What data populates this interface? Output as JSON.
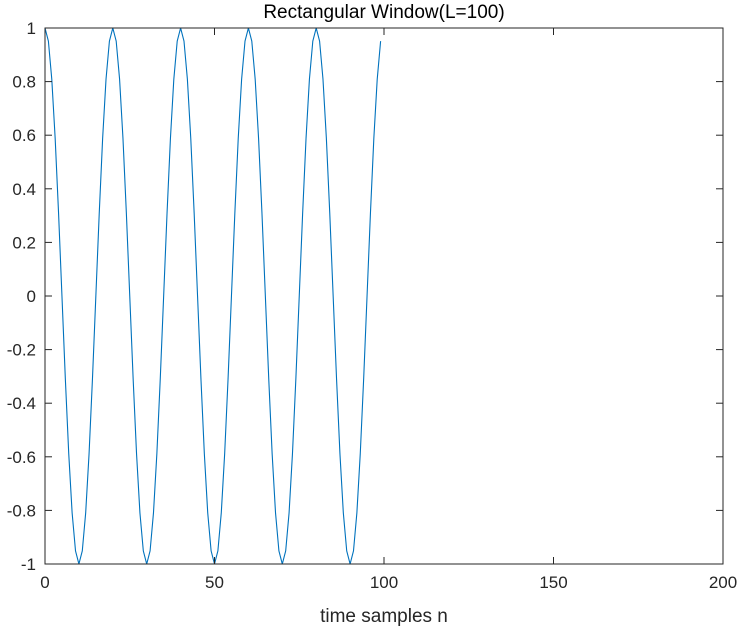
{
  "chart_data": {
    "type": "line",
    "title": "Rectangular Window(L=100)",
    "xlabel": "time samples n",
    "ylabel": "",
    "xlim": [
      0,
      200
    ],
    "ylim": [
      -1,
      1
    ],
    "x_ticks": [
      0,
      50,
      100,
      150,
      200
    ],
    "y_ticks": [
      -1,
      -0.8,
      -0.6,
      -0.4,
      -0.2,
      0,
      0.2,
      0.4,
      0.6,
      0.8,
      1
    ],
    "x_tick_labels": [
      "0",
      "50",
      "100",
      "150",
      "200"
    ],
    "y_tick_labels": [
      "-1",
      "-0.8",
      "-0.6",
      "-0.4",
      "-0.2",
      "0",
      "0.2",
      "0.4",
      "0.6",
      "0.8",
      "1"
    ],
    "grid": false,
    "series": [
      {
        "color": "#0072bd",
        "x_start": 0,
        "x_step": 1,
        "values": [
          1,
          0.951,
          0.809,
          0.588,
          0.309,
          0,
          -0.309,
          -0.588,
          -0.809,
          -0.951,
          -1,
          -0.951,
          -0.809,
          -0.588,
          -0.309,
          0,
          0.309,
          0.588,
          0.809,
          0.951,
          1,
          0.951,
          0.809,
          0.588,
          0.309,
          0,
          -0.309,
          -0.588,
          -0.809,
          -0.951,
          -1,
          -0.951,
          -0.809,
          -0.588,
          -0.309,
          0,
          0.309,
          0.588,
          0.809,
          0.951,
          1,
          0.951,
          0.809,
          0.588,
          0.309,
          0,
          -0.309,
          -0.588,
          -0.809,
          -0.951,
          -1,
          -0.951,
          -0.809,
          -0.588,
          -0.309,
          0,
          0.309,
          0.588,
          0.809,
          0.951,
          1,
          0.951,
          0.809,
          0.588,
          0.309,
          0,
          -0.309,
          -0.588,
          -0.809,
          -0.951,
          -1,
          -0.951,
          -0.809,
          -0.588,
          -0.309,
          0,
          0.309,
          0.588,
          0.809,
          0.951,
          1,
          0.951,
          0.809,
          0.588,
          0.309,
          0,
          -0.309,
          -0.588,
          -0.809,
          -0.951,
          -1,
          -0.951,
          -0.809,
          -0.588,
          -0.309,
          0,
          0.309,
          0.588,
          0.809,
          0.951
        ]
      }
    ]
  }
}
